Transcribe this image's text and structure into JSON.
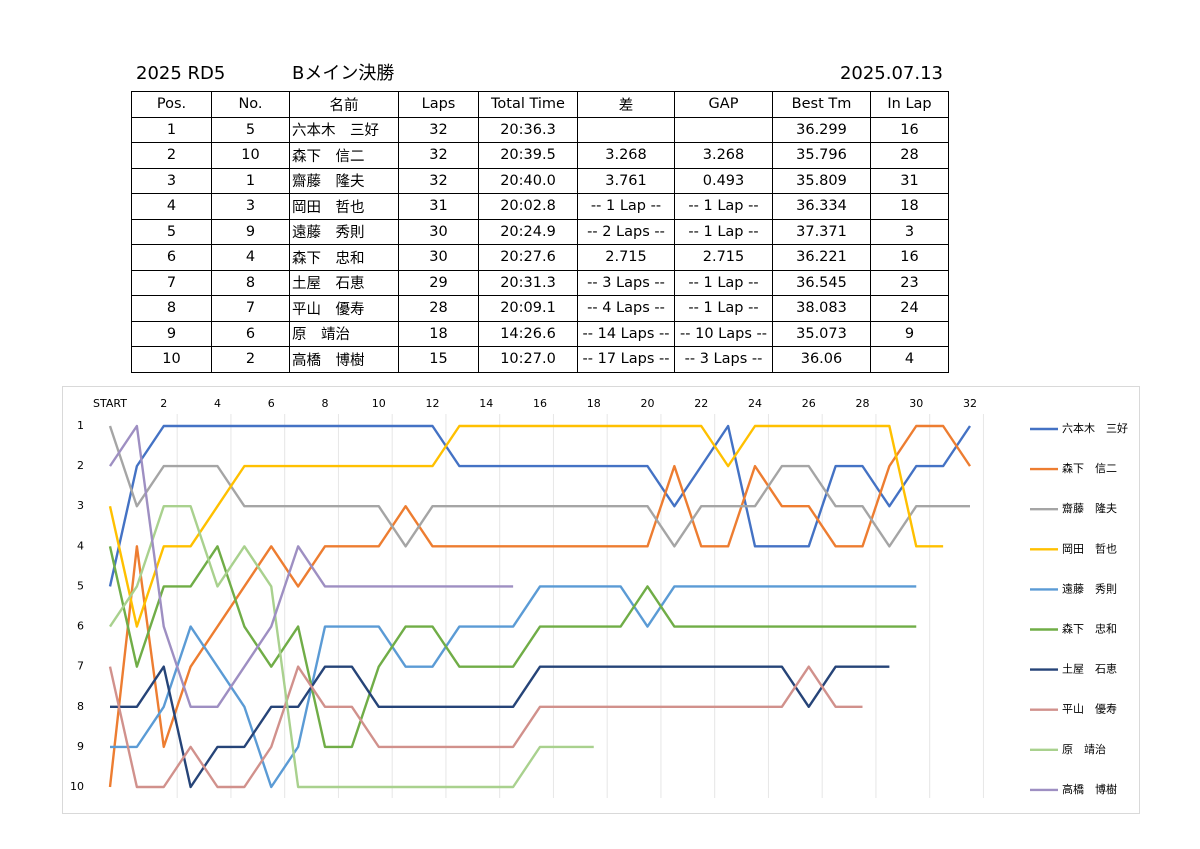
{
  "header": {
    "round": "2025 RD5",
    "event": "Bメイン決勝",
    "date": "2025.07.13"
  },
  "table": {
    "header": [
      "Pos.",
      "No.",
      "名前",
      "Laps",
      "Total Time",
      "差",
      "GAP",
      "Best Tm",
      "In Lap"
    ],
    "rows": [
      [
        "1",
        "5",
        "六本木　三好",
        "32",
        "20:36.3",
        null,
        null,
        "36.299",
        "16"
      ],
      [
        "2",
        "10",
        "森下　信二",
        "32",
        "20:39.5",
        "3.268",
        "3.268",
        "35.796",
        "28"
      ],
      [
        "3",
        "1",
        "齋藤　隆夫",
        "32",
        "20:40.0",
        "3.761",
        "0.493",
        "35.809",
        "31"
      ],
      [
        "4",
        "3",
        "岡田　哲也",
        "31",
        "20:02.8",
        "-- 1 Lap --",
        "-- 1 Lap --",
        "36.334",
        "18"
      ],
      [
        "5",
        "9",
        "遠藤　秀則",
        "30",
        "20:24.9",
        "-- 2 Laps --",
        "-- 1 Lap --",
        "37.371",
        "3"
      ],
      [
        "6",
        "4",
        "森下　忠和",
        "30",
        "20:27.6",
        "2.715",
        "2.715",
        "36.221",
        "16"
      ],
      [
        "7",
        "8",
        "土屋　石恵",
        "29",
        "20:31.3",
        "-- 3 Laps --",
        "-- 1 Lap --",
        "36.545",
        "23"
      ],
      [
        "8",
        "7",
        "平山　優寿",
        "28",
        "20:09.1",
        "-- 4 Laps --",
        "-- 1 Lap --",
        "38.083",
        "24"
      ],
      [
        "9",
        "6",
        "原　靖治",
        "18",
        "14:26.6",
        "-- 14 Laps --",
        "-- 10 Laps --",
        "35.073",
        "9"
      ],
      [
        "10",
        "2",
        "高橋　博樹",
        "15",
        "10:27.0",
        "-- 17 Laps --",
        "-- 3 Laps --",
        "36.06",
        "4"
      ]
    ]
  },
  "chart_data": {
    "type": "line",
    "categories": [
      "START",
      null,
      "2",
      null,
      "4",
      null,
      "6",
      null,
      "8",
      null,
      "10",
      null,
      "12",
      null,
      "14",
      null,
      "16",
      null,
      "18",
      null,
      "20",
      null,
      "22",
      null,
      "24",
      null,
      "26",
      null,
      "28",
      null,
      "30",
      null,
      "32"
    ],
    "ylim": [
      10,
      1
    ],
    "yticks": [
      1,
      2,
      3,
      4,
      5,
      6,
      7,
      8,
      9,
      10
    ],
    "legend": "right",
    "series": [
      {
        "name": "六本木　三好",
        "color": "#4472c4",
        "values": [
          5,
          2,
          1,
          1,
          1,
          1,
          1,
          1,
          1,
          1,
          1,
          1,
          1,
          2,
          2,
          2,
          2,
          2,
          2,
          2,
          2,
          3,
          2,
          1,
          4,
          4,
          4,
          2,
          2,
          3,
          2,
          2,
          1
        ]
      },
      {
        "name": "森下　信二",
        "color": "#ed7d31",
        "values": [
          10,
          4,
          9,
          7,
          6,
          5,
          4,
          5,
          4,
          4,
          4,
          3,
          4,
          4,
          4,
          4,
          4,
          4,
          4,
          4,
          4,
          2,
          4,
          4,
          2,
          3,
          3,
          4,
          4,
          2,
          1,
          1,
          2
        ]
      },
      {
        "name": "齋藤　隆夫",
        "color": "#a5a5a5",
        "values": [
          1,
          3,
          2,
          2,
          2,
          3,
          3,
          3,
          3,
          3,
          3,
          4,
          3,
          3,
          3,
          3,
          3,
          3,
          3,
          3,
          3,
          4,
          3,
          3,
          3,
          2,
          2,
          3,
          3,
          4,
          3,
          3,
          3
        ]
      },
      {
        "name": "岡田　哲也",
        "color": "#ffc000",
        "values": [
          3,
          6,
          4,
          4,
          3,
          2,
          2,
          2,
          2,
          2,
          2,
          2,
          2,
          1,
          1,
          1,
          1,
          1,
          1,
          1,
          1,
          1,
          1,
          2,
          1,
          1,
          1,
          1,
          1,
          1,
          4,
          4,
          null
        ]
      },
      {
        "name": "遠藤　秀則",
        "color": "#5b9bd5",
        "values": [
          9,
          9,
          8,
          6,
          7,
          8,
          10,
          9,
          6,
          6,
          6,
          7,
          7,
          6,
          6,
          6,
          5,
          5,
          5,
          5,
          6,
          5,
          5,
          5,
          5,
          5,
          5,
          5,
          5,
          5,
          5,
          null,
          null
        ]
      },
      {
        "name": "森下　忠和",
        "color": "#70ad47",
        "values": [
          4,
          7,
          5,
          5,
          4,
          6,
          7,
          6,
          9,
          9,
          7,
          6,
          6,
          7,
          7,
          7,
          6,
          6,
          6,
          6,
          5,
          6,
          6,
          6,
          6,
          6,
          6,
          6,
          6,
          6,
          6,
          null,
          null
        ]
      },
      {
        "name": "土屋　石恵",
        "color": "#264478",
        "values": [
          8,
          8,
          7,
          10,
          9,
          9,
          8,
          8,
          7,
          7,
          8,
          8,
          8,
          8,
          8,
          8,
          7,
          7,
          7,
          7,
          7,
          7,
          7,
          7,
          7,
          7,
          8,
          7,
          7,
          7,
          null,
          null,
          null
        ]
      },
      {
        "name": "平山　優寿",
        "color": "#d1918c",
        "values": [
          7,
          10,
          10,
          9,
          10,
          10,
          9,
          7,
          8,
          8,
          9,
          9,
          9,
          9,
          9,
          9,
          8,
          8,
          8,
          8,
          8,
          8,
          8,
          8,
          8,
          8,
          7,
          8,
          8,
          null,
          null,
          null,
          null
        ]
      },
      {
        "name": "原　靖治",
        "color": "#a9d18e",
        "values": [
          6,
          5,
          3,
          3,
          5,
          4,
          5,
          10,
          10,
          10,
          10,
          10,
          10,
          10,
          10,
          10,
          9,
          9,
          9,
          null,
          null,
          null,
          null,
          null,
          null,
          null,
          null,
          null,
          null,
          null,
          null,
          null,
          null
        ]
      },
      {
        "name": "高橋　博樹",
        "color": "#9e8fc2",
        "values": [
          2,
          1,
          6,
          8,
          8,
          7,
          6,
          4,
          5,
          5,
          5,
          5,
          5,
          5,
          5,
          5,
          null,
          null,
          null,
          null,
          null,
          null,
          null,
          null,
          null,
          null,
          null,
          null,
          null,
          null,
          null,
          null,
          null
        ]
      }
    ]
  }
}
